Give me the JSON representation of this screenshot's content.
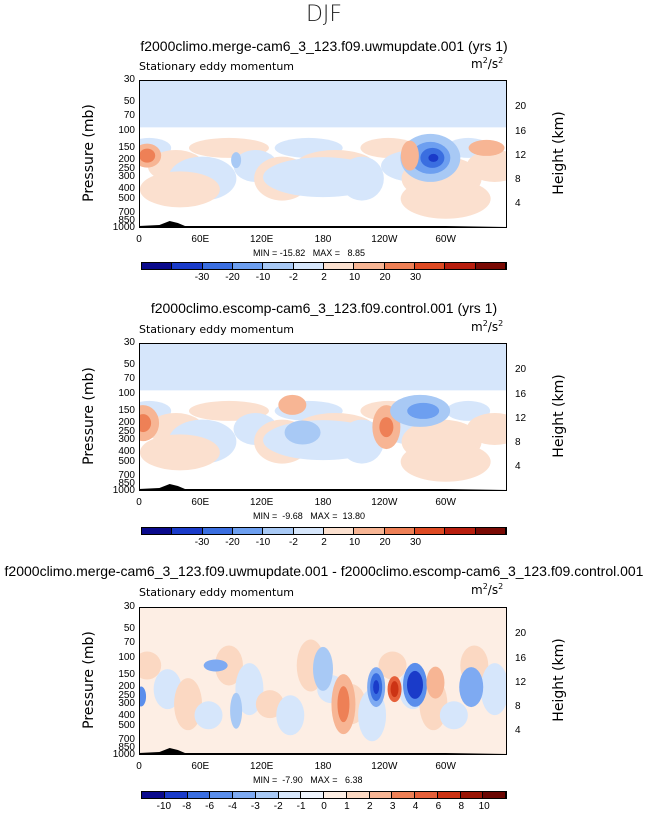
{
  "page": {
    "title": "DJF"
  },
  "panels": [
    {
      "title": "f2000climo.merge-cam6_3_123.f09.uwmupdate.001 (yrs 1)",
      "left_label": "Stationary eddy momentum",
      "units_base": "m",
      "units_exp1": "2",
      "units_sep": "/s",
      "units_exp2": "2",
      "minmax": "MIN = -15.82   MAX =   8.85",
      "colorbar_labels": [
        "-30",
        "-20",
        "-10",
        "-2",
        "2",
        "10",
        "20",
        "30"
      ]
    },
    {
      "title": "f2000climo.escomp-cam6_3_123.f09.control.001 (yrs 1)",
      "left_label": "Stationary eddy momentum",
      "units_base": "m",
      "units_exp1": "2",
      "units_sep": "/s",
      "units_exp2": "2",
      "minmax": "MIN =  -9.68   MAX =  13.80",
      "colorbar_labels": [
        "-30",
        "-20",
        "-10",
        "-2",
        "2",
        "10",
        "20",
        "30"
      ]
    },
    {
      "title": "f2000climo.merge-cam6_3_123.f09.uwmupdate.001 - f2000climo.escomp-cam6_3_123.f09.control.001",
      "left_label": "Stationary eddy momentum",
      "units_base": "m",
      "units_exp1": "2",
      "units_sep": "/s",
      "units_exp2": "2",
      "minmax": "MIN =  -7.90   MAX =   6.38",
      "colorbar_labels": [
        "-10",
        "-8",
        "-6",
        "-4",
        "-3",
        "-2",
        "-1",
        "0",
        "1",
        "2",
        "3",
        "4",
        "6",
        "8",
        "10"
      ]
    }
  ],
  "axes": {
    "ylabel_left": "Pressure (mb)",
    "ylabel_right": "Height (km)",
    "pressure_ticks": [
      "30",
      "50",
      "70",
      "100",
      "150",
      "200",
      "250",
      "300",
      "400",
      "500",
      "700",
      "850",
      "1000"
    ],
    "height_ticks": [
      "20",
      "16",
      "12",
      "8",
      "4"
    ],
    "lon_ticks": [
      "0",
      "60E",
      "120E",
      "180",
      "120W",
      "60W"
    ]
  },
  "colors": {
    "abs_scale": [
      "#0a0a8c",
      "#1a3bc9",
      "#3a6ee0",
      "#6d9ff0",
      "#a8c9f5",
      "#d6e6fb",
      "#fbe0cf",
      "#f7b594",
      "#ee8056",
      "#de4a23",
      "#b81e0e",
      "#7a0a04"
    ],
    "diff_scale": [
      "#0a0a8c",
      "#1a3bc9",
      "#3a6ee0",
      "#5a8eec",
      "#7eaaf2",
      "#a8c9f5",
      "#d6e6fb",
      "#eef4fd",
      "#fdeee4",
      "#fbd8c2",
      "#f7b594",
      "#ee8056",
      "#e6603a",
      "#cc3314",
      "#9a1606",
      "#6a0602"
    ]
  },
  "chart_data": [
    {
      "type": "heatmap",
      "title": "f2000climo.merge-cam6_3_123.f09.uwmupdate.001 (yrs 1)",
      "xlabel": "",
      "ylabel": "Pressure (mb)",
      "ylabel_right": "Height (km)",
      "xlim": [
        0,
        360
      ],
      "ylim": [
        1000,
        30
      ],
      "contour_levels": [
        -30,
        -20,
        -10,
        -2,
        2,
        10,
        20,
        30
      ],
      "min": -15.82,
      "max": 8.85,
      "features": [
        {
          "lon": 15,
          "p": 200,
          "sign": "positive",
          "approx": 10
        },
        {
          "lon": 275,
          "p": 200,
          "sign": "negative",
          "approx": -15.82
        },
        {
          "lon": 250,
          "p": 180,
          "sign": "positive",
          "approx": 8
        }
      ]
    },
    {
      "type": "heatmap",
      "title": "f2000climo.escomp-cam6_3_123.f09.control.001 (yrs 1)",
      "xlabel": "",
      "ylabel": "Pressure (mb)",
      "ylabel_right": "Height (km)",
      "xlim": [
        0,
        360
      ],
      "ylim": [
        1000,
        30
      ],
      "contour_levels": [
        -30,
        -20,
        -10,
        -2,
        2,
        10,
        20,
        30
      ],
      "min": -9.68,
      "max": 13.8,
      "features": [
        {
          "lon": 5,
          "p": 200,
          "sign": "positive",
          "approx": 10
        },
        {
          "lon": 240,
          "p": 200,
          "sign": "positive",
          "approx": 13.8
        },
        {
          "lon": 270,
          "p": 150,
          "sign": "negative",
          "approx": -9.68
        }
      ]
    },
    {
      "type": "heatmap",
      "title": "f2000climo.merge-cam6_3_123.f09.uwmupdate.001 - f2000climo.escomp-cam6_3_123.f09.control.001",
      "xlabel": "",
      "ylabel": "Pressure (mb)",
      "ylabel_right": "Height (km)",
      "xlim": [
        0,
        360
      ],
      "ylim": [
        1000,
        30
      ],
      "contour_levels": [
        -10,
        -8,
        -6,
        -4,
        -3,
        -2,
        -1,
        0,
        1,
        2,
        3,
        4,
        6,
        8,
        10
      ],
      "min": -7.9,
      "max": 6.38,
      "features": [
        {
          "lon": 230,
          "p": 200,
          "sign": "negative",
          "approx": -7.9
        },
        {
          "lon": 250,
          "p": 200,
          "sign": "positive",
          "approx": 6.38
        },
        {
          "lon": 270,
          "p": 200,
          "sign": "negative",
          "approx": -7
        }
      ]
    }
  ]
}
